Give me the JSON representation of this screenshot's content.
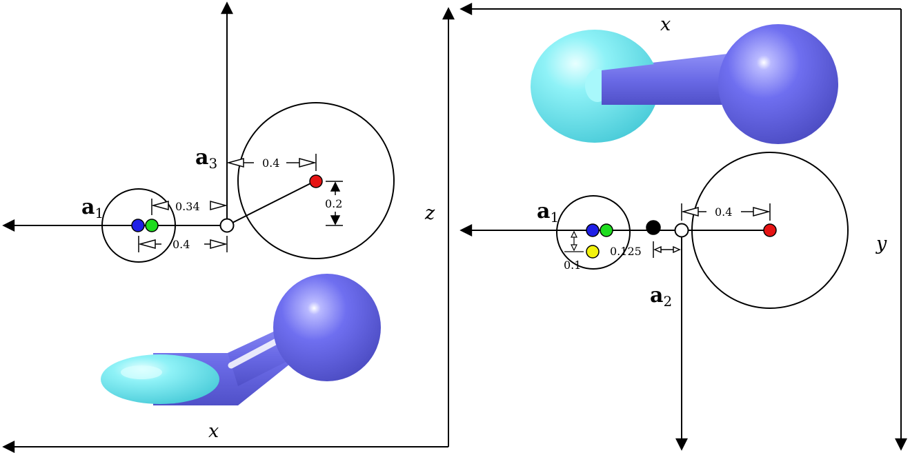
{
  "left_panel": {
    "labels": {
      "a1": {
        "main": "a",
        "sub": "1"
      },
      "a3": {
        "main": "a",
        "sub": "3"
      },
      "axis_x": "x",
      "axis_z": "z"
    },
    "dimensions": {
      "d_034": "0.34",
      "d_04_bottom": "0.4",
      "d_04_top": "0.4",
      "d_02": "0.2"
    }
  },
  "right_panel": {
    "labels": {
      "a1": {
        "main": "a",
        "sub": "1"
      },
      "a2": {
        "main": "a",
        "sub": "2"
      },
      "axis_x": "x",
      "axis_y": "y"
    },
    "dimensions": {
      "d_04": "0.4",
      "d_0125": "0.125",
      "d_01": "0.1"
    }
  },
  "colors": {
    "blue": "#1f1fe6",
    "green": "#1fdc1f",
    "red": "#e61414",
    "yellow": "#f2f20d",
    "black": "#000000",
    "body_purple": "#6a6ae6",
    "body_cyan": "#66e8f0"
  }
}
